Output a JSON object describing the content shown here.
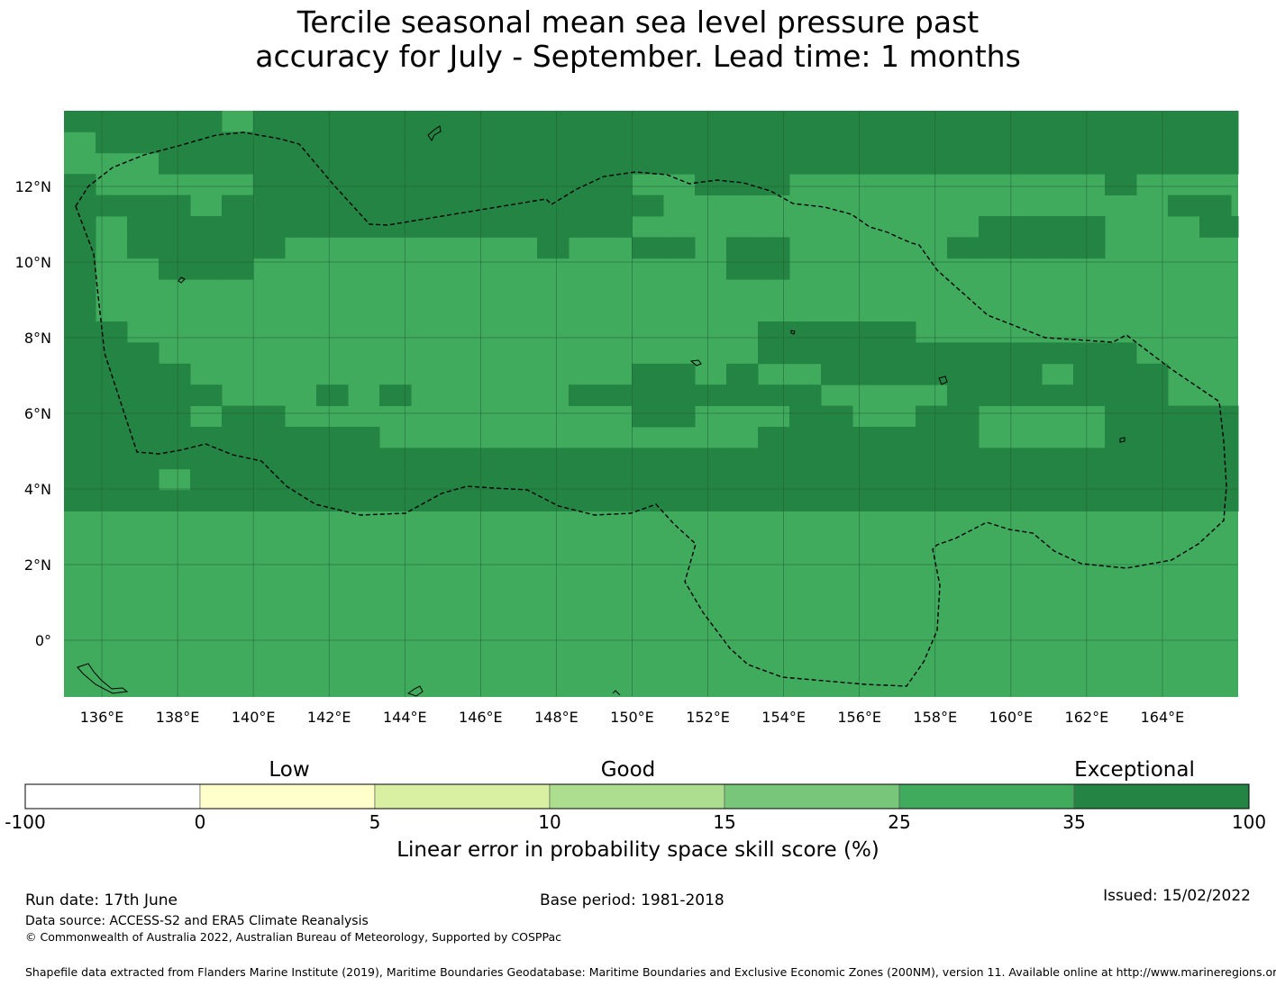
{
  "title": {
    "line1": "Tercile seasonal mean sea level pressure past",
    "line2": "accuracy for July - September. Lead time: 1 months"
  },
  "map": {
    "x_tick_labels": [
      "136°E",
      "138°E",
      "140°E",
      "142°E",
      "144°E",
      "146°E",
      "148°E",
      "150°E",
      "152°E",
      "154°E",
      "156°E",
      "158°E",
      "160°E",
      "162°E",
      "164°E"
    ],
    "y_tick_labels": [
      "12°N",
      "10°N",
      "8°N",
      "6°N",
      "4°N",
      "2°N",
      "0°"
    ],
    "lon_range": [
      135,
      166
    ],
    "lat_range": [
      -1.5,
      14
    ],
    "grid_lines": true,
    "colors": {
      "class_25_35": "#41ab5d",
      "class_35_100": "#238443",
      "coast": "#000000",
      "eez": "#000000"
    },
    "cell_size_deg": 0.833,
    "cells_35_100": [
      [
        0,
        0
      ],
      [
        1,
        0
      ],
      [
        2,
        0
      ],
      [
        3,
        0
      ],
      [
        4,
        0
      ],
      [
        6,
        0
      ],
      [
        7,
        0
      ],
      [
        8,
        0
      ],
      [
        9,
        0
      ],
      [
        10,
        0
      ],
      [
        11,
        0
      ],
      [
        12,
        0
      ],
      [
        13,
        0
      ],
      [
        14,
        0
      ],
      [
        15,
        0
      ],
      [
        16,
        0
      ],
      [
        17,
        0
      ],
      [
        18,
        0
      ],
      [
        19,
        0
      ],
      [
        20,
        0
      ],
      [
        21,
        0
      ],
      [
        22,
        0
      ],
      [
        23,
        0
      ],
      [
        24,
        0
      ],
      [
        25,
        0
      ],
      [
        26,
        0
      ],
      [
        27,
        0
      ],
      [
        28,
        0
      ],
      [
        29,
        0
      ],
      [
        30,
        0
      ],
      [
        31,
        0
      ],
      [
        32,
        0
      ],
      [
        33,
        0
      ],
      [
        34,
        0
      ],
      [
        35,
        0
      ],
      [
        36,
        0
      ],
      [
        37,
        0
      ],
      [
        1,
        1
      ],
      [
        2,
        1
      ],
      [
        3,
        1
      ],
      [
        4,
        1
      ],
      [
        5,
        1
      ],
      [
        6,
        1
      ],
      [
        7,
        1
      ],
      [
        8,
        1
      ],
      [
        9,
        1
      ],
      [
        10,
        1
      ],
      [
        11,
        1
      ],
      [
        12,
        1
      ],
      [
        13,
        1
      ],
      [
        14,
        1
      ],
      [
        15,
        1
      ],
      [
        16,
        1
      ],
      [
        17,
        1
      ],
      [
        18,
        1
      ],
      [
        19,
        1
      ],
      [
        20,
        1
      ],
      [
        21,
        1
      ],
      [
        22,
        1
      ],
      [
        23,
        1
      ],
      [
        24,
        1
      ],
      [
        25,
        1
      ],
      [
        26,
        1
      ],
      [
        27,
        1
      ],
      [
        28,
        1
      ],
      [
        29,
        1
      ],
      [
        30,
        1
      ],
      [
        31,
        1
      ],
      [
        32,
        1
      ],
      [
        33,
        1
      ],
      [
        34,
        1
      ],
      [
        35,
        1
      ],
      [
        36,
        1
      ],
      [
        37,
        1
      ],
      [
        3,
        2
      ],
      [
        4,
        2
      ],
      [
        5,
        2
      ],
      [
        6,
        2
      ],
      [
        7,
        2
      ],
      [
        8,
        2
      ],
      [
        9,
        2
      ],
      [
        10,
        2
      ],
      [
        11,
        2
      ],
      [
        12,
        2
      ],
      [
        13,
        2
      ],
      [
        14,
        2
      ],
      [
        15,
        2
      ],
      [
        16,
        2
      ],
      [
        17,
        2
      ],
      [
        18,
        2
      ],
      [
        19,
        2
      ],
      [
        20,
        2
      ],
      [
        21,
        2
      ],
      [
        22,
        2
      ],
      [
        23,
        2
      ],
      [
        24,
        2
      ],
      [
        25,
        2
      ],
      [
        26,
        2
      ],
      [
        27,
        2
      ],
      [
        28,
        2
      ],
      [
        29,
        2
      ],
      [
        30,
        2
      ],
      [
        31,
        2
      ],
      [
        32,
        2
      ],
      [
        33,
        2
      ],
      [
        34,
        2
      ],
      [
        35,
        2
      ],
      [
        36,
        2
      ],
      [
        37,
        2
      ],
      [
        0,
        3
      ],
      [
        6,
        3
      ],
      [
        7,
        3
      ],
      [
        8,
        3
      ],
      [
        9,
        3
      ],
      [
        10,
        3
      ],
      [
        11,
        3
      ],
      [
        12,
        3
      ],
      [
        13,
        3
      ],
      [
        14,
        3
      ],
      [
        15,
        3
      ],
      [
        16,
        3
      ],
      [
        17,
        3
      ],
      [
        20,
        3
      ],
      [
        21,
        3
      ],
      [
        22,
        3
      ],
      [
        33,
        3
      ],
      [
        0,
        4
      ],
      [
        1,
        4
      ],
      [
        2,
        4
      ],
      [
        3,
        4
      ],
      [
        5,
        4
      ],
      [
        6,
        4
      ],
      [
        7,
        4
      ],
      [
        8,
        4
      ],
      [
        9,
        4
      ],
      [
        10,
        4
      ],
      [
        11,
        4
      ],
      [
        12,
        4
      ],
      [
        13,
        4
      ],
      [
        14,
        4
      ],
      [
        15,
        4
      ],
      [
        16,
        4
      ],
      [
        17,
        4
      ],
      [
        18,
        4
      ],
      [
        35,
        4
      ],
      [
        36,
        4
      ],
      [
        0,
        5
      ],
      [
        2,
        5
      ],
      [
        3,
        5
      ],
      [
        4,
        5
      ],
      [
        5,
        5
      ],
      [
        6,
        5
      ],
      [
        7,
        5
      ],
      [
        8,
        5
      ],
      [
        9,
        5
      ],
      [
        10,
        5
      ],
      [
        11,
        5
      ],
      [
        12,
        5
      ],
      [
        13,
        5
      ],
      [
        14,
        5
      ],
      [
        15,
        5
      ],
      [
        16,
        5
      ],
      [
        17,
        5
      ],
      [
        29,
        5
      ],
      [
        30,
        5
      ],
      [
        31,
        5
      ],
      [
        32,
        5
      ],
      [
        36,
        5
      ],
      [
        37,
        5
      ],
      [
        0,
        6
      ],
      [
        2,
        6
      ],
      [
        3,
        6
      ],
      [
        4,
        6
      ],
      [
        5,
        6
      ],
      [
        6,
        6
      ],
      [
        15,
        6
      ],
      [
        18,
        6
      ],
      [
        19,
        6
      ],
      [
        21,
        6
      ],
      [
        22,
        6
      ],
      [
        28,
        6
      ],
      [
        29,
        6
      ],
      [
        30,
        6
      ],
      [
        31,
        6
      ],
      [
        32,
        6
      ],
      [
        0,
        7
      ],
      [
        3,
        7
      ],
      [
        4,
        7
      ],
      [
        5,
        7
      ],
      [
        21,
        7
      ],
      [
        22,
        7
      ],
      [
        0,
        8
      ],
      [
        0,
        9
      ],
      [
        0,
        10
      ],
      [
        1,
        10
      ],
      [
        22,
        10
      ],
      [
        23,
        10
      ],
      [
        24,
        10
      ],
      [
        25,
        10
      ],
      [
        26,
        10
      ],
      [
        0,
        11
      ],
      [
        1,
        11
      ],
      [
        2,
        11
      ],
      [
        22,
        11
      ],
      [
        23,
        11
      ],
      [
        24,
        11
      ],
      [
        25,
        11
      ],
      [
        26,
        11
      ],
      [
        27,
        11
      ],
      [
        28,
        11
      ],
      [
        29,
        11
      ],
      [
        30,
        11
      ],
      [
        31,
        11
      ],
      [
        32,
        11
      ],
      [
        33,
        11
      ],
      [
        0,
        12
      ],
      [
        1,
        12
      ],
      [
        2,
        12
      ],
      [
        3,
        12
      ],
      [
        18,
        12
      ],
      [
        19,
        12
      ],
      [
        21,
        12
      ],
      [
        24,
        12
      ],
      [
        25,
        12
      ],
      [
        26,
        12
      ],
      [
        27,
        12
      ],
      [
        28,
        12
      ],
      [
        29,
        12
      ],
      [
        30,
        12
      ],
      [
        32,
        12
      ],
      [
        33,
        12
      ],
      [
        34,
        12
      ],
      [
        0,
        13
      ],
      [
        1,
        13
      ],
      [
        2,
        13
      ],
      [
        3,
        13
      ],
      [
        4,
        13
      ],
      [
        8,
        13
      ],
      [
        10,
        13
      ],
      [
        16,
        13
      ],
      [
        17,
        13
      ],
      [
        18,
        13
      ],
      [
        19,
        13
      ],
      [
        20,
        13
      ],
      [
        21,
        13
      ],
      [
        22,
        13
      ],
      [
        23,
        13
      ],
      [
        28,
        13
      ],
      [
        29,
        13
      ],
      [
        30,
        13
      ],
      [
        31,
        13
      ],
      [
        32,
        13
      ],
      [
        33,
        13
      ],
      [
        34,
        13
      ],
      [
        0,
        14
      ],
      [
        1,
        14
      ],
      [
        2,
        14
      ],
      [
        3,
        14
      ],
      [
        5,
        14
      ],
      [
        6,
        14
      ],
      [
        18,
        14
      ],
      [
        19,
        14
      ],
      [
        23,
        14
      ],
      [
        24,
        14
      ],
      [
        27,
        14
      ],
      [
        28,
        14
      ],
      [
        33,
        14
      ],
      [
        34,
        14
      ],
      [
        35,
        14
      ],
      [
        36,
        14
      ],
      [
        37,
        14
      ],
      [
        0,
        15
      ],
      [
        1,
        15
      ],
      [
        2,
        15
      ],
      [
        3,
        15
      ],
      [
        4,
        15
      ],
      [
        5,
        15
      ],
      [
        6,
        15
      ],
      [
        7,
        15
      ],
      [
        8,
        15
      ],
      [
        9,
        15
      ],
      [
        22,
        15
      ],
      [
        23,
        15
      ],
      [
        24,
        15
      ],
      [
        25,
        15
      ],
      [
        26,
        15
      ],
      [
        27,
        15
      ],
      [
        28,
        15
      ],
      [
        33,
        15
      ],
      [
        34,
        15
      ],
      [
        35,
        15
      ],
      [
        36,
        15
      ],
      [
        37,
        15
      ],
      [
        0,
        16
      ],
      [
        1,
        16
      ],
      [
        2,
        16
      ],
      [
        3,
        16
      ],
      [
        4,
        16
      ],
      [
        5,
        16
      ],
      [
        6,
        16
      ],
      [
        7,
        16
      ],
      [
        8,
        16
      ],
      [
        9,
        16
      ],
      [
        10,
        16
      ],
      [
        11,
        16
      ],
      [
        12,
        16
      ],
      [
        13,
        16
      ],
      [
        14,
        16
      ],
      [
        15,
        16
      ],
      [
        16,
        16
      ],
      [
        17,
        16
      ],
      [
        18,
        16
      ],
      [
        19,
        16
      ],
      [
        20,
        16
      ],
      [
        21,
        16
      ],
      [
        22,
        16
      ],
      [
        23,
        16
      ],
      [
        24,
        16
      ],
      [
        25,
        16
      ],
      [
        26,
        16
      ],
      [
        27,
        16
      ],
      [
        28,
        16
      ],
      [
        29,
        16
      ],
      [
        30,
        16
      ],
      [
        31,
        16
      ],
      [
        32,
        16
      ],
      [
        33,
        16
      ],
      [
        34,
        16
      ],
      [
        35,
        16
      ],
      [
        36,
        16
      ],
      [
        37,
        16
      ],
      [
        0,
        17
      ],
      [
        1,
        17
      ],
      [
        2,
        17
      ],
      [
        4,
        17
      ],
      [
        5,
        17
      ],
      [
        6,
        17
      ],
      [
        7,
        17
      ],
      [
        8,
        17
      ],
      [
        9,
        17
      ],
      [
        10,
        17
      ],
      [
        11,
        17
      ],
      [
        12,
        17
      ],
      [
        13,
        17
      ],
      [
        14,
        17
      ],
      [
        15,
        17
      ],
      [
        16,
        17
      ],
      [
        17,
        17
      ],
      [
        18,
        17
      ],
      [
        19,
        17
      ],
      [
        20,
        17
      ],
      [
        21,
        17
      ],
      [
        22,
        17
      ],
      [
        23,
        17
      ],
      [
        24,
        17
      ],
      [
        25,
        17
      ],
      [
        26,
        17
      ],
      [
        27,
        17
      ],
      [
        28,
        17
      ],
      [
        29,
        17
      ],
      [
        30,
        17
      ],
      [
        31,
        17
      ],
      [
        32,
        17
      ],
      [
        33,
        17
      ],
      [
        34,
        17
      ],
      [
        35,
        17
      ],
      [
        36,
        17
      ],
      [
        37,
        17
      ],
      [
        0,
        18
      ],
      [
        1,
        18
      ],
      [
        2,
        18
      ],
      [
        3,
        18
      ],
      [
        4,
        18
      ],
      [
        5,
        18
      ],
      [
        6,
        18
      ],
      [
        7,
        18
      ],
      [
        8,
        18
      ],
      [
        9,
        18
      ],
      [
        10,
        18
      ],
      [
        11,
        18
      ],
      [
        12,
        18
      ],
      [
        13,
        18
      ],
      [
        14,
        18
      ],
      [
        15,
        18
      ],
      [
        16,
        18
      ],
      [
        17,
        18
      ],
      [
        18,
        18
      ],
      [
        19,
        18
      ],
      [
        20,
        18
      ],
      [
        21,
        18
      ],
      [
        22,
        18
      ],
      [
        23,
        18
      ],
      [
        24,
        18
      ],
      [
        25,
        18
      ],
      [
        26,
        18
      ],
      [
        27,
        18
      ],
      [
        28,
        18
      ],
      [
        29,
        18
      ],
      [
        30,
        18
      ],
      [
        31,
        18
      ],
      [
        32,
        18
      ],
      [
        33,
        18
      ],
      [
        34,
        18
      ],
      [
        35,
        18
      ],
      [
        36,
        18
      ],
      [
        37,
        18
      ],
      [
        38,
        18
      ]
    ]
  },
  "colorbar": {
    "headers": {
      "low": "Low",
      "good": "Good",
      "exceptional": "Exceptional"
    },
    "segments": [
      {
        "from": "-100",
        "to": "0",
        "color": "#ffffff"
      },
      {
        "from": "0",
        "to": "5",
        "color": "#ffffcc"
      },
      {
        "from": "5",
        "to": "10",
        "color": "#d9f0a3"
      },
      {
        "from": "10",
        "to": "15",
        "color": "#addd8e"
      },
      {
        "from": "15",
        "to": "25",
        "color": "#78c679"
      },
      {
        "from": "25",
        "to": "35",
        "color": "#41ab5d"
      },
      {
        "from": "35",
        "to": "100",
        "color": "#238443"
      }
    ],
    "ticks": [
      "-100",
      "0",
      "5",
      "10",
      "15",
      "25",
      "35",
      "100"
    ],
    "label": "Linear error in probability space skill score (%)"
  },
  "footer": {
    "run_date": "Run date: 17th June",
    "base_period": "Base period: 1981-2018",
    "issued": "Issued: 15/02/2022",
    "data_source": "Data source: ACCESS-S2 and ERA5 Climate Reanalysis",
    "copyright": "© Commonwealth of Australia 2022, Australian Bureau of Meteorology, Supported by COSPPac",
    "shapefile_note": "Shapefile data extracted from Flanders Marine Institute (2019), Maritime Boundaries Geodatabase: Maritime Boundaries and Exclusive Economic Zones (200NM), version 11. Available online at http://www.marineregions.org/."
  }
}
